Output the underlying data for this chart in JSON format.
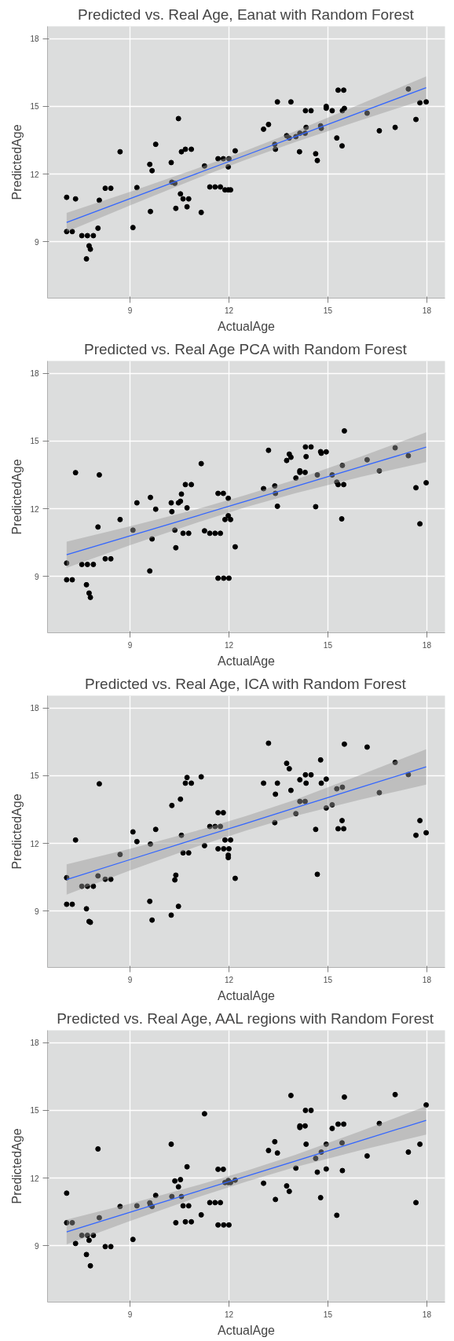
{
  "chart_data": [
    {
      "type": "scatter",
      "title": "Predicted vs. Real Age, Eanat with Random Forest",
      "xlabel": "ActualAge",
      "ylabel": "PredictedAge",
      "xlim": [
        6.5,
        18.55
      ],
      "ylim": [
        6.5,
        18.55
      ],
      "xticks": [
        9,
        12,
        15,
        18
      ],
      "yticks": [
        9,
        12,
        15,
        18
      ],
      "grid": true,
      "series": [
        {
          "type": "scatter",
          "marker": "circle",
          "color": "#000000",
          "x": [
            7.08,
            7.08,
            7.25,
            7.35,
            7.54,
            7.71,
            7.68,
            7.76,
            7.8,
            7.89,
            8.03,
            8.07,
            8.25,
            8.42,
            8.7,
            9.09,
            9.21,
            9.6,
            9.62,
            9.67,
            9.78,
            10.25,
            10.27,
            10.36,
            10.39,
            10.47,
            10.53,
            10.56,
            10.61,
            10.68,
            10.73,
            10.78,
            10.86,
            11.16,
            11.26,
            11.42,
            11.58,
            11.67,
            11.74,
            11.83,
            11.88,
            11.98,
            11.98,
            12.0,
            12.05,
            12.19,
            13.05,
            13.2,
            13.39,
            13.41,
            13.47,
            13.75,
            13.83,
            13.88,
            14.03,
            14.15,
            14.14,
            14.31,
            14.32,
            14.34,
            14.49,
            14.63,
            14.68,
            14.78,
            14.8,
            14.95,
            14.95,
            15.13,
            15.27,
            15.31,
            15.43,
            15.44,
            15.48,
            15.5,
            16.19,
            16.56,
            17.04,
            17.44,
            17.67,
            17.79,
            17.98
          ],
          "values": [
            10.97,
            9.45,
            9.45,
            10.9,
            9.27,
            9.27,
            8.24,
            8.82,
            8.67,
            9.27,
            9.6,
            10.84,
            11.37,
            11.37,
            12.99,
            9.63,
            11.4,
            12.43,
            10.34,
            12.15,
            13.32,
            12.51,
            11.64,
            11.59,
            10.48,
            14.46,
            11.12,
            12.99,
            10.9,
            13.1,
            10.55,
            10.9,
            13.1,
            10.3,
            12.36,
            11.43,
            11.43,
            12.68,
            11.43,
            12.68,
            11.3,
            12.32,
            11.3,
            12.68,
            11.3,
            13.03,
            13.99,
            14.2,
            13.32,
            13.1,
            15.2,
            13.7,
            13.6,
            15.2,
            13.66,
            13.81,
            12.99,
            13.81,
            14.81,
            14.07,
            14.81,
            12.9,
            12.6,
            14.14,
            14.03,
            15.0,
            14.92,
            14.81,
            13.6,
            15.72,
            13.25,
            14.81,
            15.72,
            14.91,
            14.7,
            13.92,
            14.07,
            15.77,
            14.42,
            15.16,
            15.2
          ]
        },
        {
          "type": "line",
          "color": "#3366ff",
          "x": [
            7.08,
            9,
            11,
            12.5,
            14,
            16,
            17.98
          ],
          "values": [
            9.86,
            10.91,
            12.01,
            12.83,
            13.65,
            14.75,
            15.83
          ],
          "lower": [
            9.44,
            10.61,
            11.79,
            12.63,
            13.41,
            14.39,
            15.33
          ],
          "upper": [
            10.28,
            11.21,
            12.23,
            13.03,
            13.89,
            15.11,
            16.33
          ]
        }
      ]
    },
    {
      "type": "scatter",
      "title": "Predicted vs. Real Age PCA with Random Forest",
      "xlabel": "ActualAge",
      "ylabel": "PredictedAge",
      "xlim": [
        6.5,
        18.55
      ],
      "ylim": [
        6.5,
        18.55
      ],
      "xticks": [
        9,
        12,
        15,
        18
      ],
      "yticks": [
        9,
        12,
        15,
        18
      ],
      "grid": true,
      "series": [
        {
          "type": "scatter",
          "marker": "circle",
          "color": "#000000",
          "x": [
            7.08,
            7.08,
            7.25,
            7.35,
            7.54,
            7.71,
            7.68,
            7.76,
            7.8,
            7.89,
            8.03,
            8.07,
            8.25,
            8.42,
            8.7,
            9.09,
            9.21,
            9.6,
            9.62,
            9.67,
            9.78,
            10.25,
            10.27,
            10.36,
            10.39,
            10.47,
            10.53,
            10.56,
            10.61,
            10.68,
            10.73,
            10.78,
            10.86,
            11.16,
            11.26,
            11.42,
            11.58,
            11.67,
            11.67,
            11.74,
            11.83,
            11.84,
            11.88,
            11.98,
            11.98,
            12.0,
            12.05,
            12.19,
            13.05,
            13.2,
            13.39,
            13.41,
            13.47,
            13.75,
            13.83,
            13.88,
            14.03,
            14.15,
            14.15,
            14.31,
            14.32,
            14.34,
            14.49,
            14.63,
            14.68,
            14.78,
            14.8,
            14.95,
            15.13,
            15.27,
            15.31,
            15.42,
            15.44,
            15.48,
            15.5,
            16.19,
            16.56,
            17.04,
            17.44,
            17.67,
            17.79,
            17.98
          ],
          "values": [
            9.59,
            8.85,
            8.85,
            13.6,
            9.53,
            9.53,
            8.63,
            8.26,
            8.07,
            9.53,
            11.19,
            13.5,
            9.78,
            9.78,
            11.52,
            11.05,
            12.26,
            9.24,
            12.5,
            10.66,
            11.98,
            12.26,
            11.87,
            11.05,
            10.27,
            12.26,
            12.33,
            12.65,
            10.91,
            13.07,
            12.04,
            10.91,
            13.07,
            14.0,
            11.02,
            10.91,
            10.91,
            12.68,
            8.92,
            10.91,
            12.68,
            8.92,
            11.52,
            12.46,
            11.69,
            8.92,
            11.52,
            10.31,
            12.89,
            14.59,
            13.01,
            12.68,
            12.11,
            14.14,
            14.42,
            14.28,
            13.36,
            13.68,
            13.61,
            13.61,
            14.74,
            14.31,
            14.74,
            12.09,
            13.5,
            14.53,
            14.46,
            14.52,
            13.5,
            13.18,
            13.07,
            11.55,
            13.92,
            13.07,
            15.45,
            14.17,
            13.68,
            14.7,
            14.35,
            12.93,
            11.33,
            13.15
          ]
        },
        {
          "type": "line",
          "color": "#3366ff",
          "x": [
            7.08,
            9,
            11,
            12.5,
            14,
            16,
            17.98
          ],
          "values": [
            9.96,
            10.8,
            11.67,
            12.33,
            12.98,
            13.86,
            14.73
          ],
          "lower": [
            9.38,
            10.38,
            11.37,
            12.06,
            12.68,
            13.41,
            14.07
          ],
          "upper": [
            10.54,
            11.22,
            11.97,
            12.6,
            13.28,
            14.31,
            15.39
          ]
        }
      ]
    },
    {
      "type": "scatter",
      "title": "Predicted vs. Real Age, ICA with Random Forest",
      "xlabel": "ActualAge",
      "ylabel": "PredictedAge",
      "xlim": [
        6.5,
        18.55
      ],
      "ylim": [
        6.5,
        18.55
      ],
      "xticks": [
        9,
        12,
        15,
        18
      ],
      "yticks": [
        9,
        12,
        15,
        18
      ],
      "grid": true,
      "series": [
        {
          "type": "scatter",
          "marker": "circle",
          "color": "#000000",
          "x": [
            7.08,
            7.08,
            7.25,
            7.35,
            7.54,
            7.71,
            7.68,
            7.76,
            7.8,
            7.89,
            8.03,
            8.07,
            8.25,
            8.42,
            8.7,
            9.09,
            9.21,
            9.6,
            9.62,
            9.67,
            9.78,
            10.25,
            10.27,
            10.36,
            10.39,
            10.47,
            10.53,
            10.56,
            10.61,
            10.68,
            10.73,
            10.78,
            10.86,
            11.16,
            11.26,
            11.42,
            11.58,
            11.67,
            11.67,
            11.74,
            11.83,
            11.84,
            11.88,
            11.98,
            11.98,
            12.0,
            12.05,
            12.19,
            13.05,
            13.2,
            13.39,
            13.41,
            13.47,
            13.75,
            13.83,
            13.88,
            14.03,
            14.15,
            14.15,
            14.31,
            14.32,
            14.34,
            14.49,
            14.63,
            14.68,
            14.78,
            14.8,
            14.95,
            14.95,
            15.13,
            15.27,
            15.31,
            15.43,
            15.44,
            15.48,
            15.5,
            16.19,
            16.56,
            17.04,
            17.44,
            17.67,
            17.79,
            17.98
          ],
          "values": [
            10.48,
            9.3,
            9.3,
            12.15,
            10.1,
            10.1,
            9.1,
            8.54,
            8.5,
            10.1,
            10.56,
            14.64,
            10.41,
            10.41,
            11.51,
            12.51,
            12.08,
            9.43,
            11.97,
            8.6,
            12.62,
            8.82,
            13.68,
            10.38,
            10.59,
            9.21,
            13.96,
            12.36,
            11.58,
            14.67,
            14.92,
            11.58,
            14.67,
            14.95,
            11.9,
            12.75,
            12.75,
            13.36,
            11.76,
            12.75,
            13.36,
            11.76,
            12.15,
            11.48,
            11.37,
            11.76,
            12.15,
            10.45,
            14.67,
            16.44,
            12.92,
            14.18,
            14.67,
            15.55,
            15.31,
            14.35,
            13.32,
            14.82,
            13.86,
            13.86,
            15.04,
            14.67,
            15.04,
            12.62,
            10.63,
            15.7,
            14.67,
            14.85,
            13.57,
            13.71,
            14.42,
            12.65,
            13.01,
            14.49,
            12.65,
            16.4,
            16.27,
            14.25,
            15.59,
            15.05,
            12.36,
            13.01,
            12.47
          ]
        },
        {
          "type": "line",
          "color": "#3366ff",
          "x": [
            7.08,
            9,
            11,
            12.5,
            14,
            16,
            17.98
          ],
          "values": [
            10.4,
            11.28,
            12.2,
            12.88,
            13.57,
            14.49,
            15.39
          ],
          "lower": [
            9.73,
            10.8,
            11.85,
            12.56,
            13.21,
            13.94,
            14.61
          ],
          "upper": [
            11.07,
            11.76,
            12.55,
            13.2,
            13.93,
            15.04,
            16.17
          ]
        }
      ]
    },
    {
      "type": "scatter",
      "title": "Predicted vs. Real Age, AAL regions with Random Forest",
      "xlabel": "ActualAge",
      "ylabel": "PredictedAge",
      "xlim": [
        6.5,
        18.55
      ],
      "ylim": [
        6.5,
        18.55
      ],
      "xticks": [
        9,
        12,
        15,
        18
      ],
      "yticks": [
        9,
        12,
        15,
        18
      ],
      "grid": true,
      "series": [
        {
          "type": "scatter",
          "marker": "circle",
          "color": "#000000",
          "x": [
            7.08,
            7.08,
            7.25,
            7.35,
            7.54,
            7.71,
            7.68,
            7.76,
            7.8,
            7.89,
            8.03,
            8.07,
            8.25,
            8.42,
            8.7,
            9.09,
            9.21,
            9.6,
            9.62,
            9.67,
            9.78,
            10.25,
            10.27,
            10.36,
            10.39,
            10.47,
            10.53,
            10.56,
            10.61,
            10.68,
            10.73,
            10.78,
            10.86,
            11.16,
            11.26,
            11.42,
            11.58,
            11.67,
            11.67,
            11.74,
            11.83,
            11.84,
            11.88,
            11.98,
            11.98,
            12.0,
            12.05,
            12.19,
            13.05,
            13.2,
            13.39,
            13.41,
            13.47,
            13.75,
            13.83,
            13.88,
            14.03,
            14.15,
            14.15,
            14.31,
            14.32,
            14.34,
            14.49,
            14.63,
            14.68,
            14.78,
            14.8,
            14.95,
            14.95,
            15.13,
            15.27,
            15.31,
            15.43,
            15.44,
            15.48,
            15.5,
            16.19,
            16.56,
            17.04,
            17.44,
            17.67,
            17.79,
            17.98
          ],
          "values": [
            10.02,
            11.33,
            10.02,
            9.1,
            9.46,
            9.46,
            8.61,
            9.24,
            8.11,
            9.46,
            13.29,
            10.24,
            8.96,
            8.96,
            10.74,
            9.28,
            10.77,
            10.9,
            10.81,
            10.74,
            11.23,
            13.5,
            11.18,
            11.87,
            10.02,
            11.61,
            11.93,
            11.18,
            10.77,
            10.06,
            12.5,
            10.77,
            10.06,
            10.37,
            14.85,
            10.91,
            10.91,
            12.39,
            9.92,
            10.91,
            12.39,
            9.92,
            11.8,
            11.89,
            11.8,
            9.92,
            11.8,
            11.91,
            11.77,
            13.22,
            13.61,
            11.05,
            13.11,
            11.65,
            11.41,
            15.66,
            12.44,
            14.31,
            14.24,
            14.31,
            15.0,
            13.5,
            15.0,
            12.87,
            12.26,
            11.13,
            13.15,
            13.5,
            12.4,
            14.2,
            10.35,
            14.39,
            13.56,
            12.33,
            14.39,
            15.59,
            12.98,
            14.42,
            15.7,
            13.15,
            10.91,
            13.5,
            15.24
          ]
        },
        {
          "type": "line",
          "color": "#3366ff",
          "x": [
            7.08,
            9,
            11,
            12.5,
            14,
            16,
            17.98
          ],
          "values": [
            9.61,
            10.48,
            11.39,
            12.07,
            12.75,
            13.66,
            14.56
          ],
          "lower": [
            9.06,
            10.1,
            11.12,
            11.83,
            12.48,
            13.24,
            13.93
          ],
          "upper": [
            10.16,
            10.86,
            11.66,
            12.31,
            13.02,
            14.08,
            15.19
          ]
        }
      ]
    }
  ]
}
